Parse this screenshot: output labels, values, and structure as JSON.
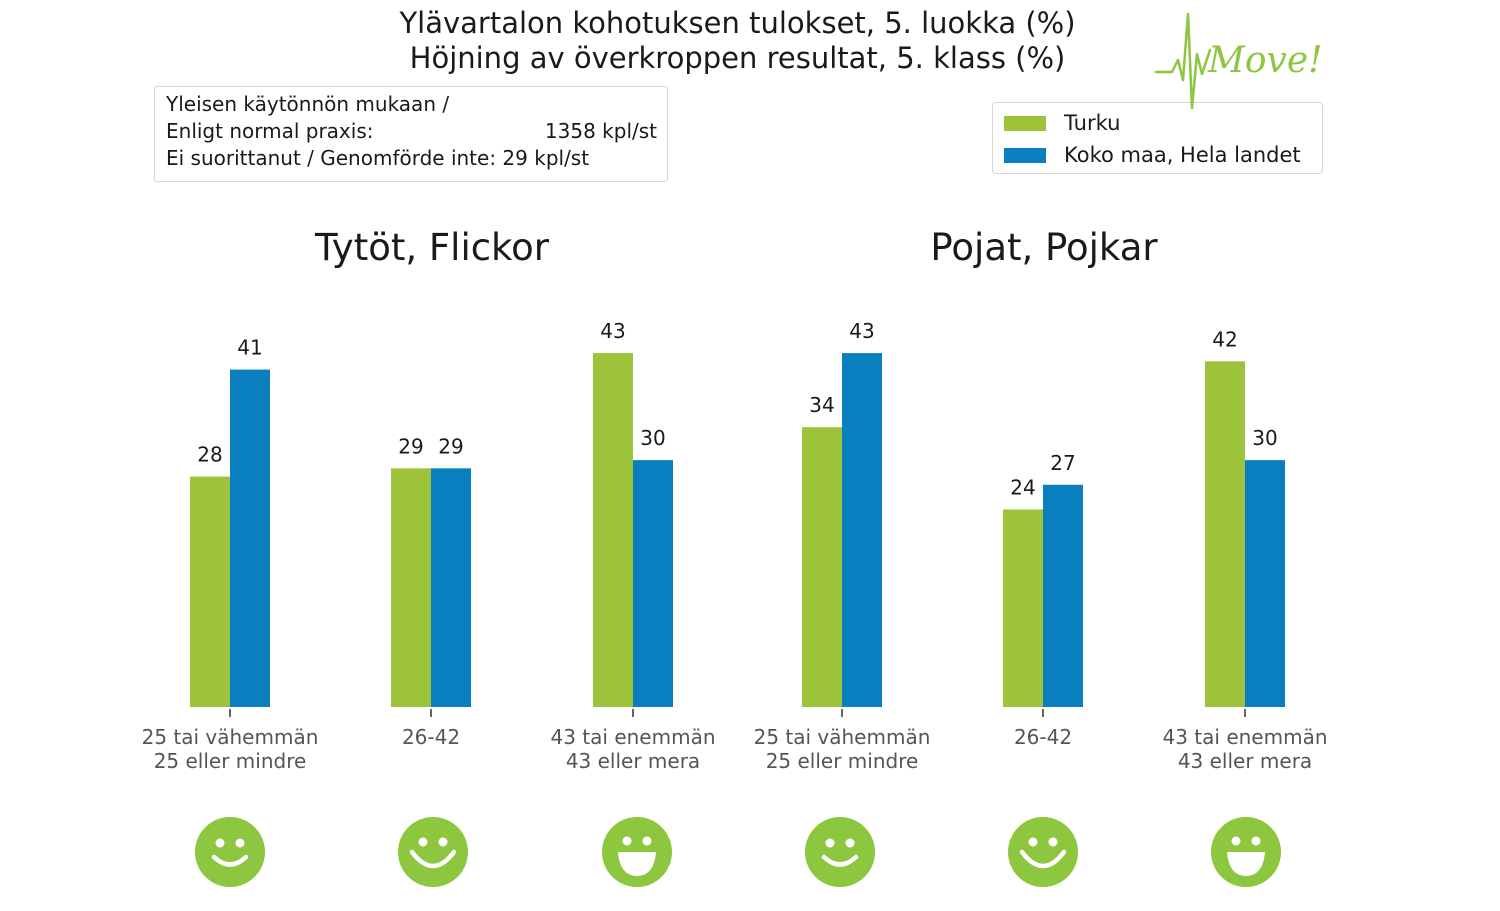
{
  "title": {
    "line1": "Ylävartalon kohotuksen tulokset, 5. luokka (%)",
    "line2": "Höjning av överkroppen resultat, 5. klass (%)"
  },
  "info": {
    "line1": "Yleisen käytönnön mukaan /",
    "line2_label": "Enligt normal praxis:",
    "line2_value": "1358 kpl/st",
    "line3": "Ei suorittanut / Genomförde inte: 29 kpl/st"
  },
  "logo_text": "Move!",
  "colors": {
    "turku": "#9dc33b",
    "koko_maa": "#0a7fc0",
    "smiley": "#8dc63f"
  },
  "chart_data": [
    {
      "type": "bar",
      "title": "Tytöt, Flickor",
      "categories": [
        "25 tai vähemmän\n25 eller mindre",
        "26-42",
        "43 tai enemmän\n43 eller mera"
      ],
      "series": [
        {
          "name": "Turku",
          "values": [
            28,
            29,
            43
          ]
        },
        {
          "name": "Koko maa, Hela landet",
          "values": [
            41,
            29,
            30
          ]
        }
      ],
      "ylim": [
        0,
        45
      ],
      "legend": "top-right",
      "grid": false
    },
    {
      "type": "bar",
      "title": "Pojat, Pojkar",
      "categories": [
        "25 tai vähemmän\n25 eller mindre",
        "26-42",
        "43 tai enemmän\n43 eller mera"
      ],
      "series": [
        {
          "name": "Turku",
          "values": [
            34,
            24,
            42
          ]
        },
        {
          "name": "Koko maa, Hela landet",
          "values": [
            43,
            27,
            30
          ]
        }
      ],
      "ylim": [
        0,
        45
      ],
      "legend": "top-right",
      "grid": false
    }
  ],
  "smileys": [
    "smile",
    "grin",
    "big-grin",
    "smile",
    "grin",
    "big-grin"
  ]
}
